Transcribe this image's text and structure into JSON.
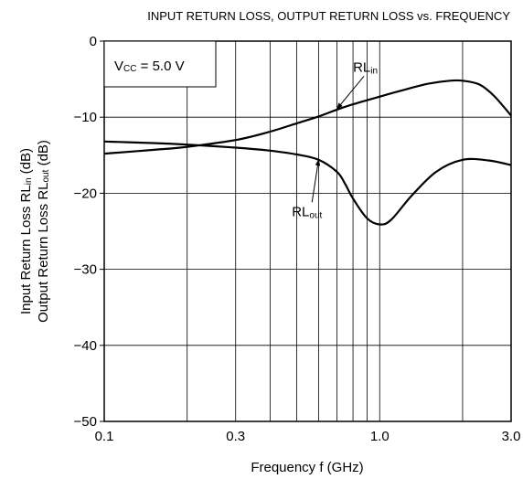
{
  "chart_data": {
    "type": "line",
    "title": "INPUT RETURN LOSS, OUTPUT RETURN LOSS vs. FREQUENCY",
    "xlabel": "Frequency  f (GHz)",
    "ylabel_line1": {
      "main": "Input Return Loss  RL",
      "sub": "in",
      "unit": " (dB)"
    },
    "ylabel_line2": {
      "main": "Output Return Loss  RL",
      "sub": "out",
      "unit": " (dB)"
    },
    "x_scale": "log",
    "xlim": [
      0.1,
      3.0
    ],
    "ylim": [
      -50,
      0
    ],
    "x_tick_labels": [
      "0.1",
      "0.3",
      "1.0",
      "3.0"
    ],
    "x_tick_values": [
      0.1,
      0.3,
      1.0,
      3.0
    ],
    "x_grid_values": [
      0.2,
      0.3,
      0.4,
      0.5,
      0.6,
      0.7,
      0.8,
      0.9,
      1.0,
      2.0
    ],
    "y_tick_labels": [
      "0",
      "−10",
      "−20",
      "−30",
      "−40",
      "−50"
    ],
    "y_tick_values": [
      0,
      -10,
      -20,
      -30,
      -40,
      -50
    ],
    "grid": true,
    "condition_box": {
      "main": "V",
      "sub": "CC",
      "rest": " = 5.0 V"
    },
    "series": [
      {
        "name_main": "RL",
        "name_sub": "in",
        "x": [
          0.1,
          0.15,
          0.2,
          0.3,
          0.4,
          0.5,
          0.6,
          0.7,
          0.8,
          1.0,
          1.2,
          1.5,
          1.8,
          2.0,
          2.3,
          2.6,
          3.0
        ],
        "y": [
          -14.8,
          -14.3,
          -13.9,
          -13.0,
          -11.9,
          -10.8,
          -9.9,
          -9.0,
          -8.3,
          -7.3,
          -6.5,
          -5.6,
          -5.2,
          -5.2,
          -5.7,
          -7.2,
          -9.8
        ],
        "label_at": [
          0.8,
          -4.0
        ],
        "arrow_to": [
          0.7,
          -8.9
        ]
      },
      {
        "name_main": "RL",
        "name_sub": "out",
        "x": [
          0.1,
          0.15,
          0.2,
          0.3,
          0.4,
          0.5,
          0.6,
          0.7,
          0.75,
          0.8,
          0.9,
          1.0,
          1.1,
          1.3,
          1.6,
          2.0,
          2.5,
          3.0
        ],
        "y": [
          -13.2,
          -13.4,
          -13.6,
          -14.0,
          -14.4,
          -14.9,
          -15.6,
          -17.2,
          -18.8,
          -20.7,
          -23.3,
          -24.1,
          -23.5,
          -20.4,
          -17.2,
          -15.6,
          -15.7,
          -16.3
        ],
        "label_at": [
          0.48,
          -23.0
        ],
        "arrow_to": [
          0.6,
          -15.6
        ]
      }
    ]
  }
}
